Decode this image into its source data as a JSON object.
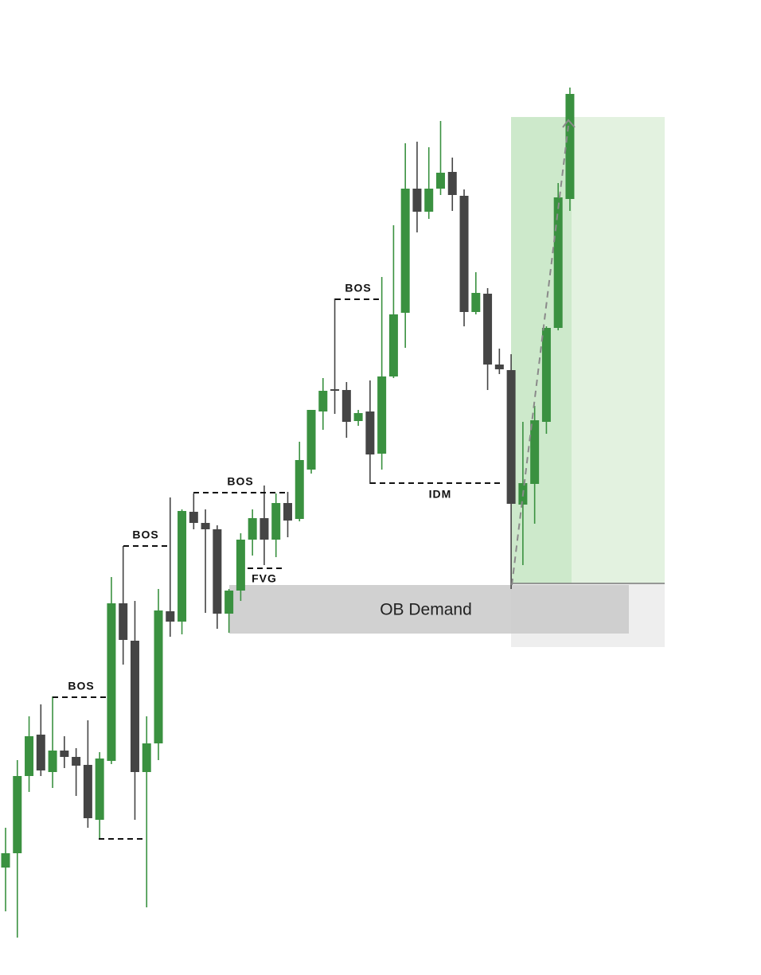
{
  "chart_data": {
    "type": "candlestick",
    "up_color": "#3a9140",
    "down_color": "#454545",
    "ylim": [
      0,
      1225
    ],
    "open": [
      135,
      153,
      250,
      302,
      255,
      282,
      274,
      264,
      195,
      269,
      467,
      420,
      255,
      291,
      457,
      444,
      582,
      568,
      560,
      454,
      483,
      547,
      574,
      547,
      593,
      573,
      635,
      708,
      736,
      735,
      696,
      708,
      655,
      752,
      832,
      988,
      959,
      988,
      1009,
      979,
      833,
      856,
      767,
      760,
      591,
      617,
      695,
      813,
      975
    ],
    "high": [
      185,
      270,
      325,
      340,
      350,
      300,
      285,
      320,
      280,
      500,
      539,
      470,
      325,
      485,
      600,
      585,
      605,
      585,
      565,
      485,
      555,
      585,
      615,
      605,
      607,
      670,
      710,
      750,
      850,
      745,
      710,
      747,
      877,
      942,
      1045,
      1047,
      1040,
      1073,
      1027,
      987,
      883,
      863,
      787,
      780,
      695,
      715,
      815,
      995,
      1115
    ],
    "low": [
      80,
      47,
      230,
      250,
      235,
      260,
      225,
      185,
      170,
      265,
      390,
      195,
      85,
      270,
      425,
      428,
      560,
      455,
      435,
      430,
      470,
      527,
      515,
      525,
      550,
      570,
      630,
      685,
      705,
      675,
      690,
      617,
      635,
      750,
      788,
      933,
      950,
      980,
      960,
      815,
      830,
      735,
      755,
      485,
      515,
      567,
      680,
      810,
      960
    ],
    "close": [
      153,
      250,
      300,
      257,
      282,
      274,
      263,
      197,
      272,
      467,
      421,
      255,
      291,
      458,
      444,
      583,
      568,
      560,
      454,
      483,
      547,
      574,
      547,
      593,
      571,
      647,
      710,
      734,
      734,
      695,
      706,
      654,
      752,
      830,
      988,
      959,
      988,
      1008,
      980,
      833,
      857,
      767,
      761,
      592,
      618,
      697,
      813,
      977,
      1107
    ],
    "annotations": [
      "BOS",
      "BOS",
      "BOS",
      "BOS",
      "FVG",
      "IDM",
      "OB Demand"
    ]
  }
}
